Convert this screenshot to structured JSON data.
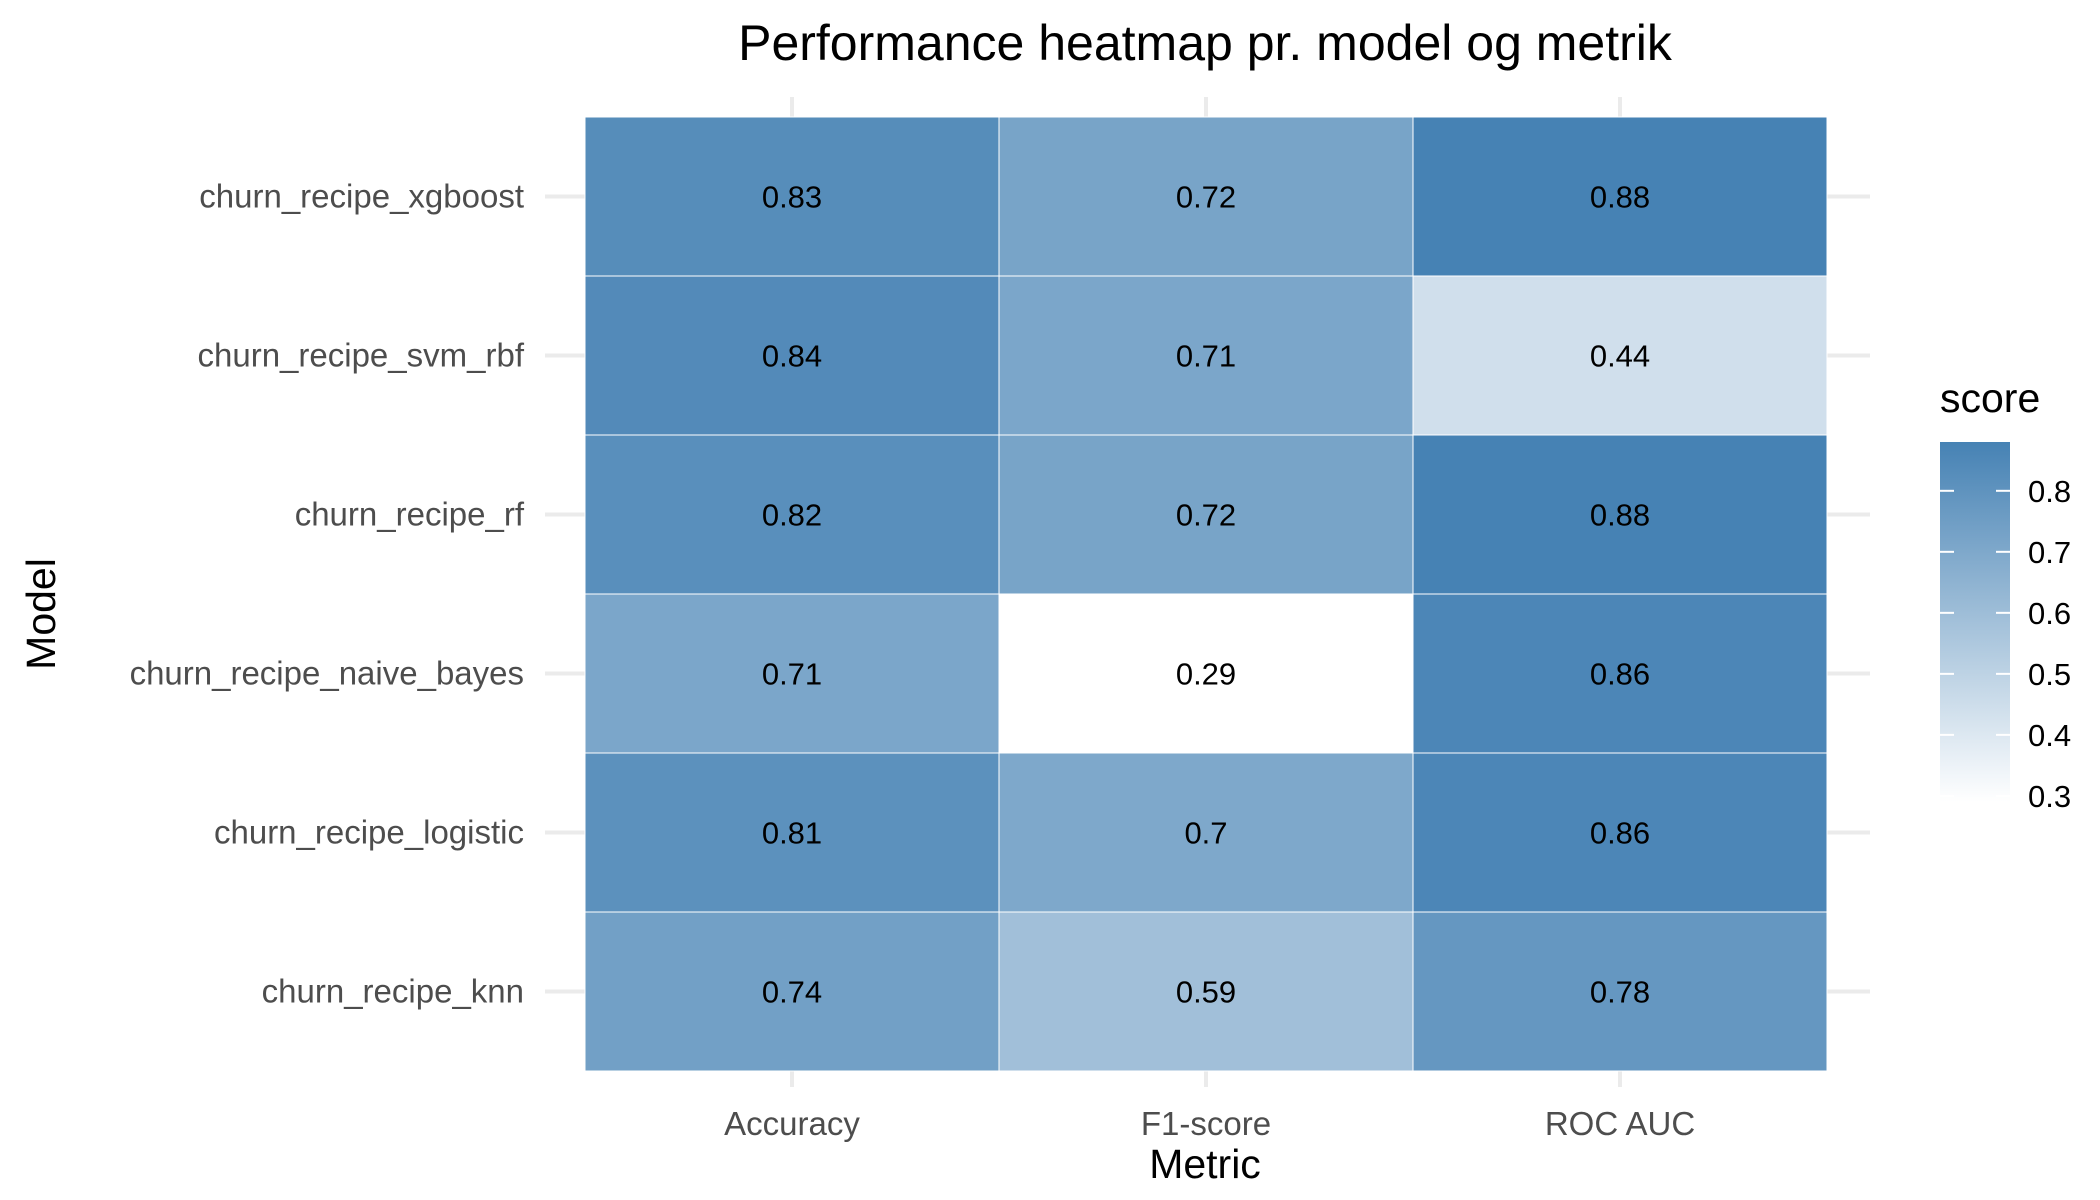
{
  "chart_data": {
    "type": "heatmap",
    "title": "Performance heatmap pr. model og metrik",
    "xlabel": "Metric",
    "ylabel": "Model",
    "x_categories": [
      "Accuracy",
      "F1-score",
      "ROC AUC"
    ],
    "y_categories": [
      "churn_recipe_xgboost",
      "churn_recipe_svm_rbf",
      "churn_recipe_rf",
      "churn_recipe_naive_bayes",
      "churn_recipe_logistic",
      "churn_recipe_knn"
    ],
    "values": [
      [
        0.83,
        0.72,
        0.88
      ],
      [
        0.84,
        0.71,
        0.44
      ],
      [
        0.82,
        0.72,
        0.88
      ],
      [
        0.71,
        0.29,
        0.86
      ],
      [
        0.81,
        0.7,
        0.86
      ],
      [
        0.74,
        0.59,
        0.78
      ]
    ],
    "cell_labels": [
      [
        "0.83",
        "0.72",
        "0.88"
      ],
      [
        "0.84",
        "0.71",
        "0.44"
      ],
      [
        "0.82",
        "0.72",
        "0.88"
      ],
      [
        "0.71",
        "0.29",
        "0.86"
      ],
      [
        "0.81",
        "0.7",
        "0.86"
      ],
      [
        "0.74",
        "0.59",
        "0.78"
      ]
    ],
    "legend": {
      "title": "score",
      "placement": "right",
      "ticks": [
        0.3,
        0.4,
        0.5,
        0.6,
        0.7,
        0.8
      ],
      "tick_labels": [
        "0.3",
        "0.4",
        "0.5",
        "0.6",
        "0.7",
        "0.8"
      ],
      "range": [
        0.29,
        0.88
      ]
    },
    "colors": {
      "low": "#ffffff",
      "high": "#4682b4"
    },
    "grid": true
  }
}
